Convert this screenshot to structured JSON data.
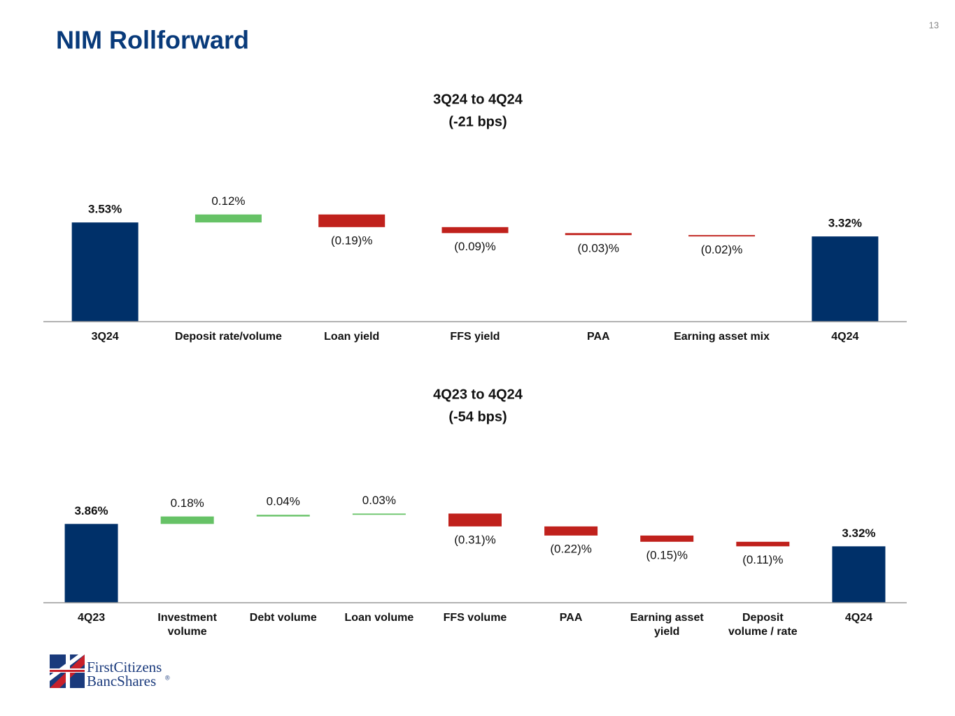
{
  "title": "NIM Rollforward",
  "page_number": 13,
  "logo": {
    "line1": "FirstCitizens",
    "line2": "BancShares",
    "mark": "®"
  },
  "chart_data": [
    {
      "type": "waterfall",
      "title": "3Q24 to 4Q24",
      "subtitle": "(-21 bps)",
      "categories": [
        "3Q24",
        "Deposit rate/volume",
        "Loan yield",
        "FFS yield",
        "PAA",
        "Earning asset mix",
        "4Q24"
      ],
      "values": [
        3.53,
        0.12,
        -0.19,
        -0.09,
        -0.03,
        -0.02,
        3.32
      ],
      "value_labels": [
        "3.53%",
        "0.12%",
        "(0.19)%",
        "(0.09)%",
        "(0.03)%",
        "(0.02)%",
        "3.32%"
      ],
      "ylim": [
        2.04,
        4.0
      ],
      "total_color": "#003069",
      "increase_color": "#66c266",
      "decrease_color": "#c0211c"
    },
    {
      "type": "waterfall",
      "title": "4Q23 to 4Q24",
      "subtitle": "(-54 bps)",
      "categories": [
        "4Q23",
        "Investment volume",
        "Debt volume",
        "Loan volume",
        "FFS volume",
        "PAA",
        "Earning asset yield",
        "Deposit volume / rate",
        "4Q24"
      ],
      "values": [
        3.86,
        0.18,
        0.04,
        0.03,
        -0.31,
        -0.22,
        -0.15,
        -0.11,
        3.32
      ],
      "value_labels": [
        "3.86%",
        "0.18%",
        "0.04%",
        "0.03%",
        "(0.31)%",
        "(0.22)%",
        "(0.15)%",
        "(0.11)%",
        "3.32%"
      ],
      "ylim": [
        1.96,
        4.0
      ],
      "total_color": "#003069",
      "increase_color": "#66c266",
      "decrease_color": "#c0211c"
    }
  ]
}
